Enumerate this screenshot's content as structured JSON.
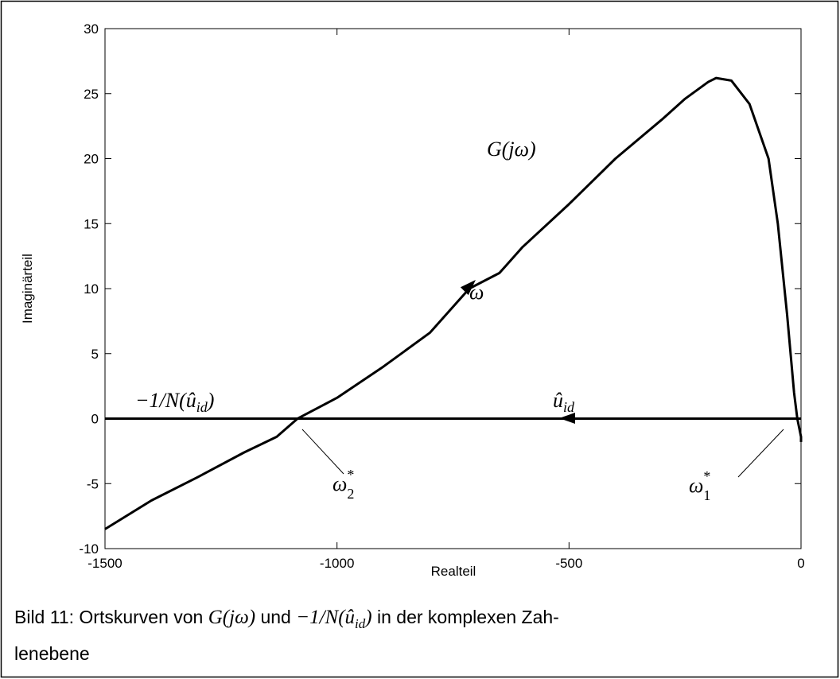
{
  "chart_data": {
    "type": "line",
    "xlabel": "Realteil",
    "ylabel": "Imaginärteil",
    "xlim": [
      -1500,
      0
    ],
    "ylim": [
      -10,
      30
    ],
    "xticks": [
      -1500,
      -1000,
      -500,
      0
    ],
    "yticks": [
      -10,
      -5,
      0,
      5,
      10,
      15,
      20,
      25,
      30
    ],
    "grid": false,
    "series": [
      {
        "color": "#000000",
        "x": [
          -1500,
          -1400,
          -1300,
          -1200,
          -1130,
          -1085,
          -1000,
          -900,
          -800,
          -715,
          -650,
          -600,
          -500,
          -400,
          -300,
          -250,
          -200,
          -183,
          -150,
          -111,
          -70,
          -50,
          -30,
          -15,
          -8,
          0,
          0
        ],
        "values": [
          -8.5,
          -6.3,
          -4.5,
          -2.6,
          -1.4,
          0,
          1.6,
          4.0,
          6.6,
          10.0,
          11.2,
          13.2,
          16.5,
          20.0,
          23.0,
          24.6,
          25.9,
          26.2,
          26.0,
          24.2,
          20,
          15,
          8,
          2,
          0,
          -1.4,
          -1.8
        ]
      },
      {
        "color": "#000000",
        "x": [
          -1500,
          0
        ],
        "values": [
          0,
          0
        ]
      }
    ],
    "annotations": [
      {
        "text": "G(jω)"
      },
      {
        "text": "ω"
      },
      {
        "text": "−1/N(û",
        "sub": "id",
        "after": ")"
      },
      {
        "text": "û",
        "sub": "id"
      },
      {
        "text": "ω",
        "sub": "2",
        "sup": "*"
      },
      {
        "text": "ω",
        "sub": "1",
        "sup": "*"
      }
    ]
  },
  "caption": [
    [
      {
        "t": "Bild 11: Ortskurven von "
      },
      {
        "t": "G(jω)",
        "style": "math"
      },
      {
        "t": " und "
      },
      {
        "t": "−1/N(û",
        "style": "math"
      },
      {
        "t": "id",
        "style": "sub"
      },
      {
        "t": ")",
        "style": "math"
      },
      {
        "t": " in der komplexen Zah-"
      }
    ],
    [
      {
        "t": "lenebene"
      }
    ]
  ]
}
